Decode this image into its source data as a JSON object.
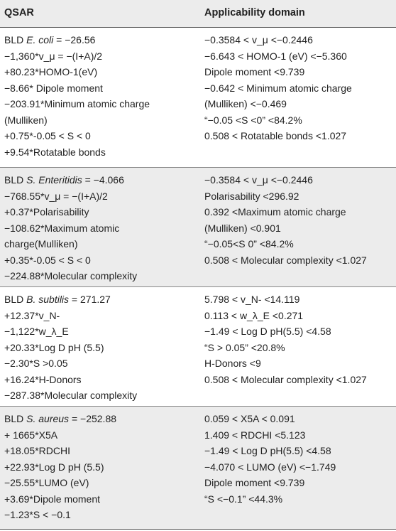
{
  "headers": {
    "qsar": "QSAR",
    "domain": "Applicability domain"
  },
  "groups": [
    {
      "title_prefix": "BLD ",
      "species": "E. coli",
      "title_value": " = −26.56",
      "qsar": [
        "−1,360*v_μ = −(I+A)/2",
        "+80.23*HOMO-1(eV)",
        "−8.66* Dipole moment",
        "−203.91*Minimum atomic charge",
        "(Mulliken)",
        "+0.75*-0.05 < S < 0",
        "+9.54*Rotatable bonds"
      ],
      "domain": [
        "−0.3584 < v_μ <−0.2446",
        "−6.643 < HOMO-1 (eV) <−5.360",
        "Dipole moment <9.739",
        "−0.642 < Minimum atomic charge",
        "(Mulliken) <−0.469",
        "“−0.05 <S <0” <84.2%",
        "0.508 < Rotatable bonds <1.027"
      ]
    },
    {
      "title_prefix": "BLD ",
      "species": "S. Enteritidis",
      "title_value": " = −4.066",
      "qsar": [
        "−768.55*v_μ = −(I+A)/2",
        "+0.37*Polarisability",
        "−108.62*Maximum atomic",
        "charge(Mulliken)",
        "+0.35*-0.05 < S < 0",
        "−224.88*Molecular complexity"
      ],
      "domain": [
        "−0.3584 < v_μ <−0.2446",
        "Polarisability <296.92",
        "0.392 <Maximum atomic charge",
        "(Mulliken) <0.901",
        "“−0.05<S 0” <84.2%",
        "0.508 < Molecular complexity <1.027"
      ]
    },
    {
      "title_prefix": "BLD ",
      "species": "B. subtilis",
      "title_value": " = 271.27",
      "qsar": [
        "+12.37*v_N-",
        "−1,122*w_λ_E",
        "+20.33*Log D pH (5.5)",
        "−2.30*S >0.05",
        "+16.24*H-Donors",
        "−287.38*Molecular complexity"
      ],
      "domain": [
        "5.798 < v_N- <14.119",
        "0.113 < w_λ_E <0.271",
        "−1.49 < Log D pH(5.5) <4.58",
        "“S > 0.05” <20.8%",
        "H-Donors <9",
        "0.508 < Molecular complexity <1.027"
      ]
    },
    {
      "title_prefix": "BLD ",
      "species": "S. aureus",
      "title_value": " = −252.88",
      "qsar": [
        "+ 1665*X5A",
        "+18.05*RDCHI",
        "+22.93*Log D pH (5.5)",
        "−25.55*LUMO (eV)",
        "+3.69*Dipole moment",
        "−1.23*S < −0.1"
      ],
      "domain": [
        "0.059 < X5A < 0.091",
        "1.409 < RDCHI <5.123",
        "−1.49 < Log D pH(5.5) <4.58",
        "−4.070 < LUMO (eV) <−1.749",
        "Dipole moment <9.739",
        "“S <−0.1” <44.3%"
      ]
    }
  ]
}
